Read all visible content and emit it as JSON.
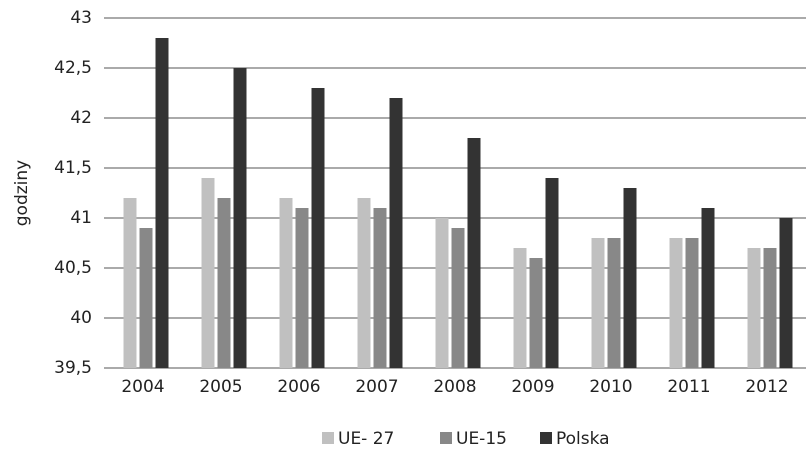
{
  "chart_data": {
    "type": "bar",
    "ylabel": "godziny",
    "categories": [
      "2004",
      "2005",
      "2006",
      "2007",
      "2008",
      "2009",
      "2010",
      "2011",
      "2012"
    ],
    "series": [
      {
        "name": "UE- 27",
        "color": "#c0c0c0",
        "values": [
          41.2,
          41.4,
          41.2,
          41.2,
          41.0,
          40.7,
          40.8,
          40.8,
          40.7
        ]
      },
      {
        "name": "UE-15",
        "color": "#888888",
        "values": [
          40.9,
          41.2,
          41.1,
          41.1,
          40.9,
          40.6,
          40.8,
          40.8,
          40.7
        ]
      },
      {
        "name": "Polska",
        "color": "#333333",
        "values": [
          42.8,
          42.5,
          42.3,
          42.2,
          41.8,
          41.4,
          41.3,
          41.1,
          41.0
        ]
      }
    ],
    "ylim": [
      39.5,
      43
    ],
    "yticks": [
      {
        "value": 39.5,
        "label": "39,5"
      },
      40,
      {
        "value": 40.5,
        "label": "40,5"
      },
      41,
      {
        "value": 41.5,
        "label": "41,5"
      },
      42,
      {
        "value": 42.5,
        "label": "42,5"
      },
      43
    ],
    "grid": true,
    "legend": "bottom"
  }
}
